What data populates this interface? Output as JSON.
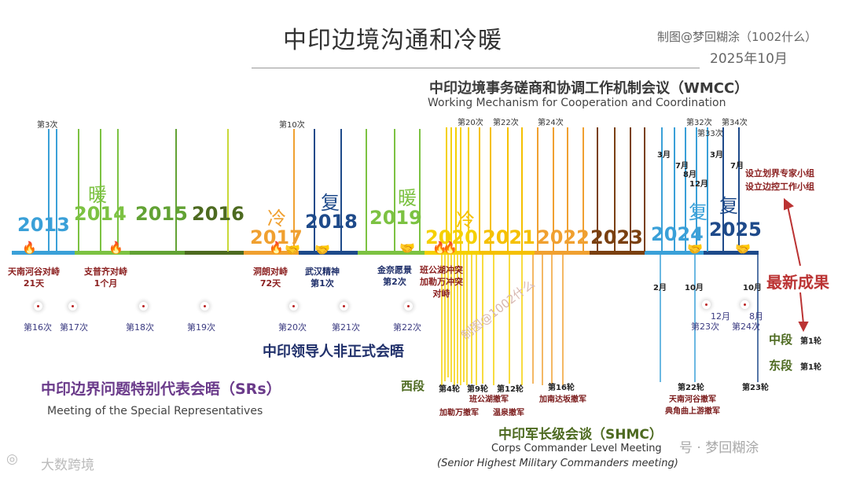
{
  "title": "中印边境沟通和冷暖",
  "credit": "制图@梦回糊涂（1002什么）",
  "credit_date": "2025年10月",
  "wmcc": {
    "zh": "中印边境事务磋商和协调工作机制会议（WMCC）",
    "en": "Working Mechanism for Cooperation and Coordination"
  },
  "years": [
    {
      "label": "2013",
      "color": "#3aa0d8"
    },
    {
      "label": "2014",
      "color": "#7cc242"
    },
    {
      "label": "2015",
      "color": "#62a234"
    },
    {
      "label": "2016",
      "color": "#4d6a20"
    },
    {
      "label": "2017",
      "color": "#f0a030"
    },
    {
      "label": "2018",
      "color": "#1e4a8a"
    },
    {
      "label": "2019",
      "color": "#7cc242"
    },
    {
      "label": "2020",
      "color": "#f5d000"
    },
    {
      "label": "2021",
      "color": "#f5d000"
    },
    {
      "label": "2022",
      "color": "#f0a030"
    },
    {
      "label": "2023",
      "color": "#7a4010"
    },
    {
      "label": "2024",
      "color": "#3aa0d8"
    },
    {
      "label": "2025",
      "color": "#1e4a8a"
    }
  ],
  "moods": [
    {
      "label": "暖",
      "color": "#7cc242"
    },
    {
      "label": "冷",
      "color": "#f0a030"
    },
    {
      "label": "复",
      "color": "#1e4a8a"
    },
    {
      "label": "暖",
      "color": "#7cc242"
    },
    {
      "label": "冷",
      "color": "#f5c000"
    },
    {
      "label": "复",
      "color": "#3aa0d8"
    },
    {
      "label": "复",
      "color": "#1e4a8a"
    }
  ],
  "wmcc_rounds": [
    "第3次",
    "第10次",
    "第20次",
    "第22次",
    "第24次",
    "第32次",
    "第33次",
    "第34次"
  ],
  "events": {
    "tiannan": "天南河谷对峙\n21天",
    "zhupuqi": "支普齐对峙\n1个月",
    "donglang": "洞朗对峙\n72天",
    "wuhan": "武汉精神\n第1次",
    "jinnai": "金奈愿景\n第2次",
    "bangong": "班公湖冲突\n加勒万冲突\n对峙"
  },
  "informal_summit": "中印领导人非正式会晤",
  "special_reps": {
    "zh": "中印边界问题特别代表会晤（SRs）",
    "en": "Meeting of the Special Representatives"
  },
  "sr_rounds": [
    "第16次",
    "第17次",
    "第18次",
    "第19次",
    "第20次",
    "第21次",
    "第22次",
    "第23次",
    "第24次"
  ],
  "sr_months": [
    "12月",
    "8月"
  ],
  "months_2024": [
    "3月",
    "7月",
    "8月",
    "12月",
    "3月",
    "7月"
  ],
  "months_bottom": [
    "2月",
    "10月",
    "10月"
  ],
  "new_groups": "设立划界专家小组\n设立边控工作小组",
  "latest": "最新成果",
  "segments": {
    "middle": "中段",
    "east": "东段",
    "round": "第1轮",
    "west": "西段"
  },
  "shmc_rounds": [
    "第4轮",
    "第9轮",
    "第12轮",
    "第16轮",
    "第22轮",
    "第23轮"
  ],
  "shmc_notes": {
    "r9": "班公湖撤军",
    "r4": "加勒万撤军",
    "r12": "温泉撤军",
    "r16": "加南达坂撤军",
    "r22": "天南河谷撤军\n典角曲上游撤军"
  },
  "shmc": {
    "zh": "中印军长级会谈（SHMC）",
    "en": "Corps Commander Level Meeting",
    "en2": "(Senior Highest Military Commanders meeting)"
  },
  "watermark": "制图@1002什么",
  "wm_bottom_left": "大数跨境",
  "wm_bottom_right": "号 · 梦回糊涂",
  "colors": {
    "axis_blue": "#3aa0d8",
    "axis_green": "#7cc242",
    "axis_yellow": "#f5d000",
    "axis_brown": "#7a4010",
    "red": "#8b2020"
  }
}
